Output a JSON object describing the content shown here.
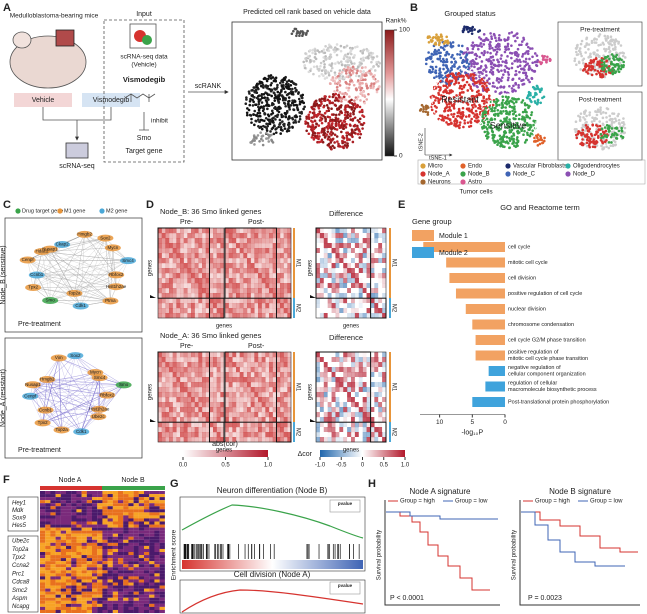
{
  "panel_labels": [
    "A",
    "B",
    "C",
    "D",
    "E",
    "F",
    "G",
    "H"
  ],
  "a": {
    "mouse": "Medulloblastoma-bearing mice",
    "vehicle": "Vehicle",
    "vismodegib": "Vismodegib",
    "scrnaseq": "scRNA-seq",
    "input": "Input",
    "input_data": [
      "scRNA-seq data",
      "(Vehicle)"
    ],
    "drug": "Vismodegib",
    "inhibit": "inhibit",
    "smo": "Smo",
    "target": "Target gene",
    "method": "scRANK",
    "rank_title": "Predicted cell rank based on vehicle data",
    "colorbar_title": "Rank%",
    "colorbar_ticks": [
      100,
      0
    ]
  },
  "b": {
    "title": "Grouped status",
    "resistant": "Resistant",
    "sensitive": "Sensitive",
    "axis_y": "tSNE-2",
    "axis_x": "tSNE-1",
    "pre": "Pre-treatment",
    "post": "Post-treatment",
    "tumor": "Tumor cells",
    "legend": [
      {
        "name": "Micro",
        "color": "#d9a03a"
      },
      {
        "name": "Endo",
        "color": "#e0622b"
      },
      {
        "name": "Vascular Fibroblasts",
        "color": "#1c2a6b"
      },
      {
        "name": "Oligodendrocytes",
        "color": "#2ab0a6"
      },
      {
        "name": "Node_A",
        "color": "#d6332f"
      },
      {
        "name": "Node_B",
        "color": "#3aa34a"
      },
      {
        "name": "Node_C",
        "color": "#3f64b5"
      },
      {
        "name": "Node_D",
        "color": "#8b4fb3"
      },
      {
        "name": "Neurons",
        "color": "#a4672f"
      },
      {
        "name": "Astro",
        "color": "#d9578f"
      }
    ]
  },
  "c": {
    "legend": [
      {
        "name": "Drug target gene",
        "color": "#3aa34a"
      },
      {
        "name": "M1 gene",
        "color": "#e8953a"
      },
      {
        "name": "M2 gene",
        "color": "#4aa8d8"
      }
    ],
    "top": "Node_B (sensitive)",
    "bottom": "Node_A (resistant)",
    "pre": "Pre-treatment",
    "genes_top": [
      "Rbfox2",
      "Hist1h2ae",
      "Ptma",
      "Cdk1",
      "Top2a",
      "Smo",
      "Tpx2",
      "Ccnb1",
      "Cenpf",
      "Hdac2",
      "Nusap1",
      "Ckap2",
      "Hmgb2",
      "Sox2",
      "Mycn",
      "Smc4"
    ],
    "genes_bottom": [
      "Rbfox2",
      "Hist1h2ae",
      "Ube2c",
      "Cdk1",
      "Top2a",
      "Tpx2",
      "Ccnb1",
      "Cenpf",
      "Nusap1",
      "Hmgb2",
      "Vim",
      "Sox2",
      "Mycn",
      "Smc4",
      "Smo"
    ]
  },
  "d": {
    "top_title": "Node_B: 36 Smo linked genes",
    "bottom_title": "Node_A: 36 Smo linked genes",
    "pre": "Pre-",
    "post": "Post-",
    "diff": "Difference",
    "genes": "genes",
    "m1": "M1",
    "m2": "M2",
    "abs_title": "abs(cor)",
    "abs_ticks": [
      {
        "value": 0,
        "label": "0.0"
      },
      0.5,
      {
        "value": 1,
        "label": "1.0"
      }
    ],
    "delta_title": "Δcor",
    "delta_ticks": [
      {
        "value": -1,
        "label": "-1.0"
      },
      -0.5,
      0,
      0.5,
      {
        "value": 1,
        "label": "1.0"
      }
    ]
  },
  "e": {
    "title": "GO and Reactome term",
    "legend_title": "Gene group",
    "xlim": [
      13,
      0
    ],
    "xticks": [
      10,
      5,
      0
    ],
    "xlabel": "-log₁₀P",
    "series": [
      {
        "name": "Module 1",
        "color": "#f2a262",
        "terms": [
          [
            "cell cycle"
          ],
          [
            "mitotic cell cycle"
          ],
          [
            "cell division"
          ],
          [
            "positive regulation of cell cycle"
          ],
          [
            "nuclear division"
          ],
          [
            "chromosome condensation"
          ],
          [
            "cell cycle G2/M phase transition"
          ],
          [
            "positive regulation of",
            "mitotic cell cycle phase transition"
          ]
        ],
        "values": [
          12.5,
          9,
          8.5,
          7.5,
          6,
          5,
          4.5,
          4.5
        ]
      },
      {
        "name": "Module 2",
        "color": "#3fa3dc",
        "terms": [
          [
            "negative regulation of",
            "cellular component organization"
          ],
          [
            "regulation of cellular",
            "macromolecule biosynthetic process"
          ],
          [
            "Post-translational protein phosphorylation"
          ]
        ],
        "values": [
          2.5,
          3,
          5
        ]
      }
    ]
  },
  "f": {
    "col_a": "Node A",
    "col_b": "Node B",
    "genes_top": [
      "Hey1",
      "Mdk",
      "Sox9",
      "Hes5"
    ],
    "genes_bottom": [
      "Ube2c",
      "Top2a",
      "Tpx2",
      "Ccna2",
      "Prc1",
      "Cdca8",
      "Smc2",
      "Aspm",
      "Ncapg"
    ]
  },
  "g": {
    "top_title": "Neuron differentiation (Node B)",
    "bottom_title": "Cell division (Node A)",
    "ylabel": "Enrichment score",
    "pvalue": "pvalue"
  },
  "h": {
    "left_title": "Node A signature",
    "right_title": "Node B signature",
    "high": "Group = high",
    "low": "Group = low",
    "ylabel": "Survival probability",
    "left_p": "P < 0.0001",
    "right_p": "P = 0.0023"
  }
}
